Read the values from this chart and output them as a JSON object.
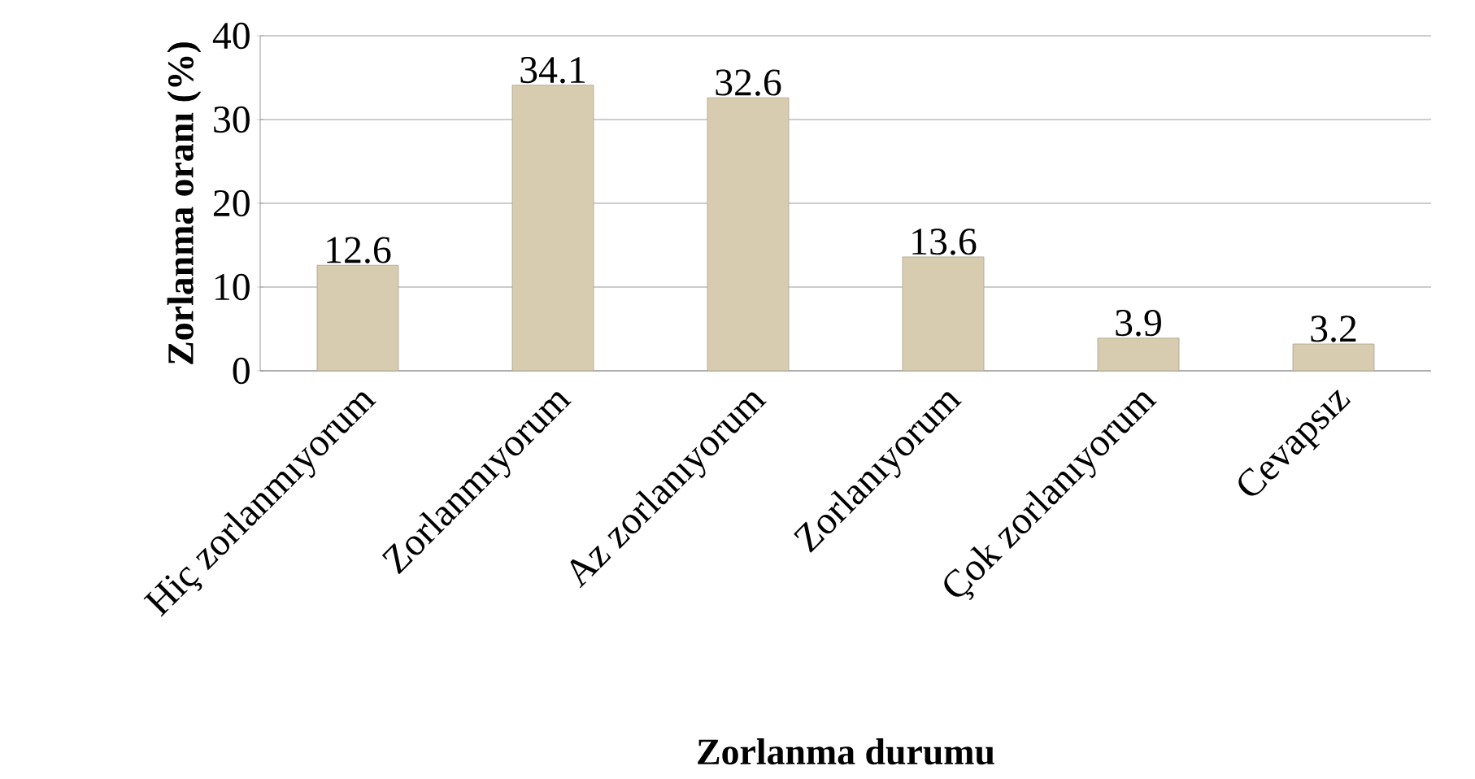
{
  "chart_data": {
    "type": "bar",
    "xlabel": "Zorlanma durumu",
    "ylabel": "Zorlanma oranı (%)",
    "categories": [
      "Hiç zorlanmıyorum",
      "Zorlanmıyorum",
      "Az zorlanıyorum",
      "Zorlanıyorum",
      "Çok zorlanıyorum",
      "Cevapsız"
    ],
    "values": [
      12.6,
      34.1,
      32.6,
      13.6,
      3.9,
      3.2
    ],
    "color": "#d8ccb0",
    "ylim": [
      0,
      40
    ],
    "yticks": [
      0,
      10,
      20,
      30,
      40
    ],
    "grid": "y",
    "data_labels": true
  }
}
